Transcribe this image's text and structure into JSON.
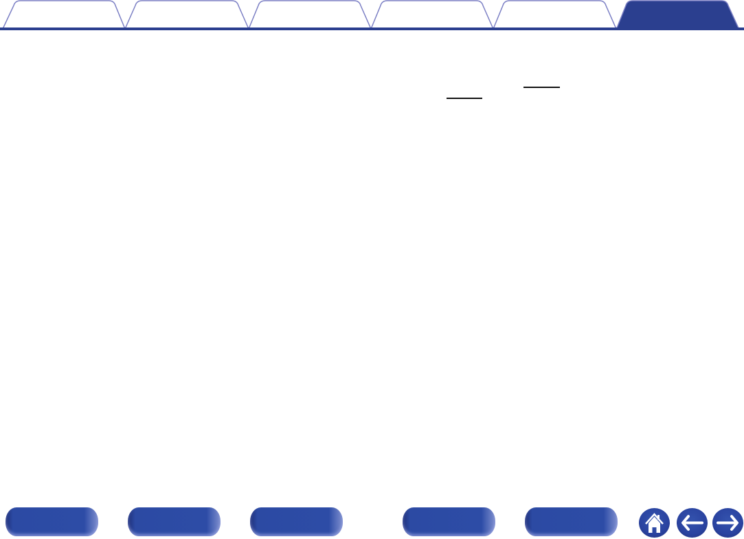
{
  "colors": {
    "accent": "#2b3f8f",
    "tab_outline": "#7b7fc4",
    "button": "#2d4ca6"
  },
  "tabs": [
    {
      "active": false
    },
    {
      "active": false
    },
    {
      "active": false
    },
    {
      "active": false
    },
    {
      "active": false
    },
    {
      "active": true
    }
  ],
  "nav_buttons": [
    {},
    {},
    {},
    {},
    {}
  ],
  "icons": {
    "home": "home-icon",
    "back": "arrow-left-icon",
    "forward": "arrow-right-icon"
  }
}
